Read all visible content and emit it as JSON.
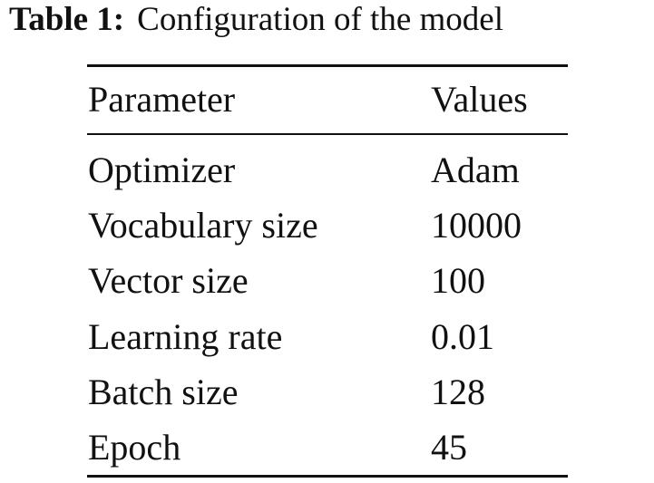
{
  "caption": {
    "label": "Table 1:",
    "text": "Configuration of the model"
  },
  "table": {
    "header": [
      "Parameter",
      "Values"
    ],
    "rows": [
      [
        "Optimizer",
        "Adam"
      ],
      [
        "Vocabulary size",
        "10000"
      ],
      [
        "Vector size",
        "100"
      ],
      [
        "Learning rate",
        "0.01"
      ],
      [
        "Batch size",
        "128"
      ],
      [
        "Epoch",
        "45"
      ]
    ]
  }
}
